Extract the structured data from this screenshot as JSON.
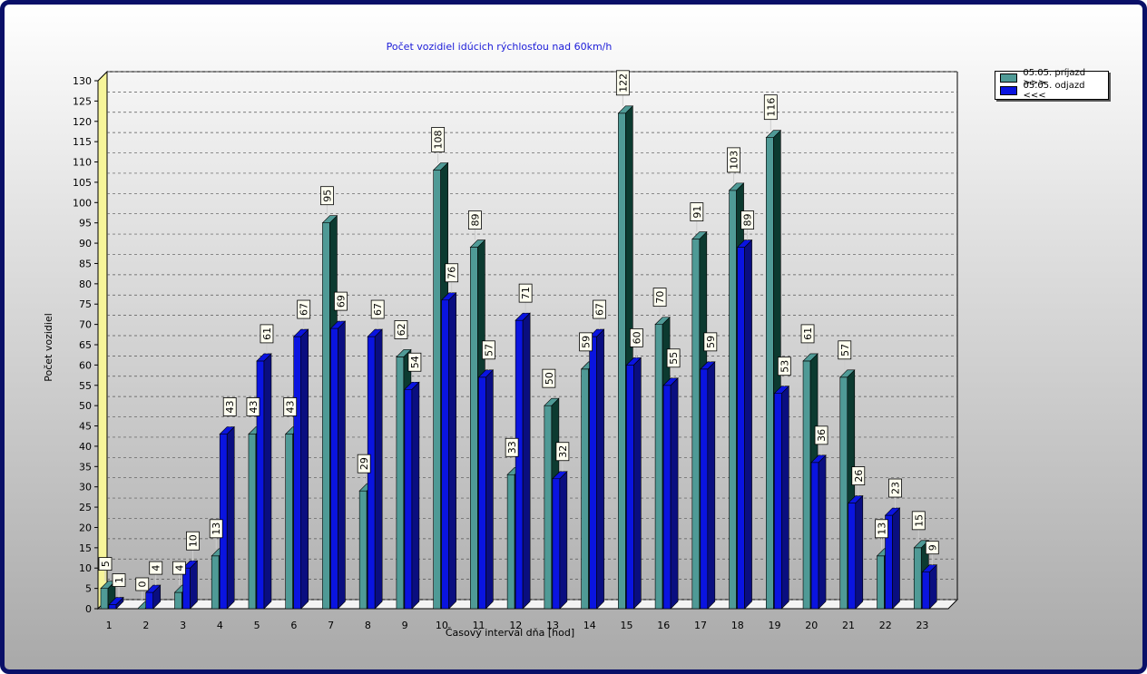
{
  "chart_data": {
    "type": "bar",
    "title": "Počet vozidiel idúcich rýchlosťou nad 60km/h",
    "xlabel": "Časový interval dňa [hod]",
    "ylabel": "Počet vozidiel",
    "ylim": [
      0,
      130
    ],
    "ytick_step": 5,
    "grid": true,
    "legend_position": "top-right",
    "categories": [
      "1",
      "2",
      "3",
      "4",
      "5",
      "6",
      "7",
      "8",
      "9",
      "10",
      "11",
      "12",
      "13",
      "14",
      "15",
      "16",
      "17",
      "18",
      "19",
      "20",
      "21",
      "22",
      "23"
    ],
    "series": [
      {
        "name": "05.05.  príjazd >>>",
        "color": "#4f9a96",
        "dark": "#0c3a30",
        "values": [
          5,
          0,
          4,
          13,
          43,
          43,
          95,
          29,
          62,
          108,
          89,
          33,
          50,
          59,
          122,
          70,
          91,
          103,
          116,
          61,
          57,
          13,
          15
        ]
      },
      {
        "name": "05.05.  odjazd <<<",
        "color": "#0a14e0",
        "dark": "#0a0e80",
        "values": [
          1,
          4,
          10,
          43,
          61,
          67,
          69,
          67,
          54,
          76,
          57,
          71,
          32,
          67,
          60,
          55,
          59,
          89,
          53,
          36,
          26,
          23,
          9
        ]
      }
    ]
  }
}
